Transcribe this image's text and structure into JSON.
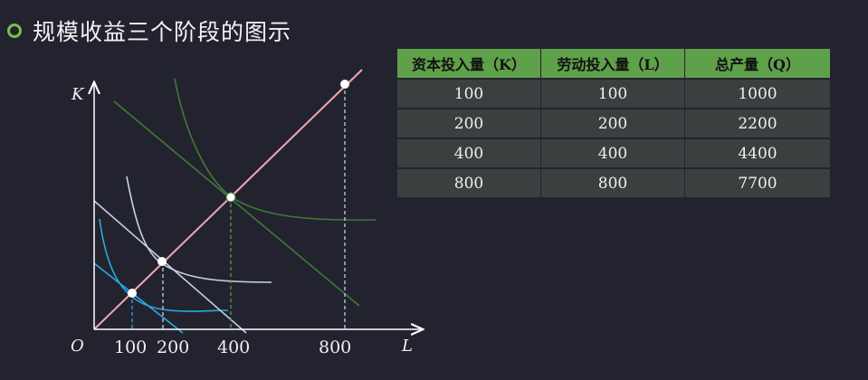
{
  "slide": {
    "title": "规模收益三个阶段的图示"
  },
  "diagram": {
    "y_axis_label": "K",
    "x_axis_label": "L",
    "origin_label": "O",
    "x_ticks": [
      "100",
      "200",
      "400",
      "800"
    ],
    "colors": {
      "axis": "#ffffff",
      "expansion_path": "#f2a6b0",
      "q1000": "#2aa9e0",
      "q2200": "#c7d3f0",
      "q4400": "#3f7a3a",
      "budget": "#c7cde6"
    }
  },
  "table": {
    "headers": [
      "资本投入量（K）",
      "劳动投入量（L）",
      "总产量（Q）"
    ],
    "rows": [
      [
        "100",
        "100",
        "1000"
      ],
      [
        "200",
        "200",
        "2200"
      ],
      [
        "400",
        "400",
        "4400"
      ],
      [
        "800",
        "800",
        "7700"
      ]
    ]
  }
}
